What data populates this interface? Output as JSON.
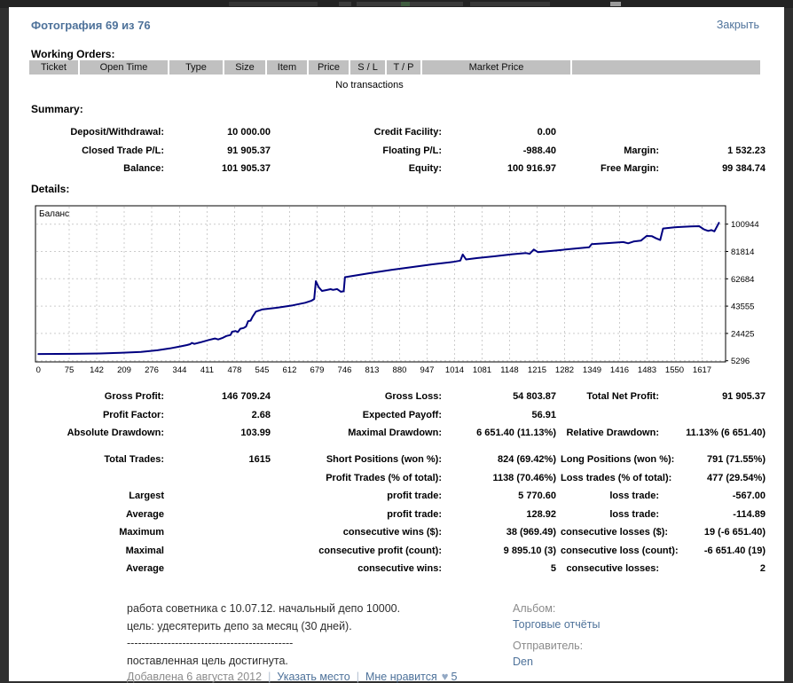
{
  "overlay": {
    "title": "Фотография 69 из 76",
    "close_label": "Закрыть"
  },
  "report": {
    "working_orders": {
      "heading": "Working Orders:",
      "columns": [
        "Ticket",
        "Open Time",
        "Type",
        "Size",
        "Item",
        "Price",
        "S / L",
        "T / P",
        "Market Price",
        ""
      ],
      "empty_message": "No transactions"
    },
    "summary": {
      "heading": "Summary:",
      "rows": [
        [
          "Deposit/Withdrawal:",
          "10 000.00",
          "Credit Facility:",
          "0.00",
          "",
          ""
        ],
        [
          "Closed Trade P/L:",
          "91 905.37",
          "Floating P/L:",
          "-988.40",
          "Margin:",
          "1 532.23"
        ],
        [
          "Balance:",
          "101 905.37",
          "Equity:",
          "100 916.97",
          "Free Margin:",
          "99 384.74"
        ]
      ]
    },
    "details_heading": "Details:",
    "stats_top": {
      "rows": [
        [
          "Gross Profit:",
          "146 709.24",
          "Gross Loss:",
          "54 803.87",
          "Total Net Profit:",
          "91 905.37"
        ],
        [
          "Profit Factor:",
          "2.68",
          "Expected Payoff:",
          "56.91",
          "",
          ""
        ],
        [
          "Absolute Drawdown:",
          "103.99",
          "Maximal Drawdown:",
          "6 651.40 (11.13%)",
          "Relative Drawdown:",
          "11.13% (6 651.40)"
        ]
      ]
    },
    "stats_main": {
      "rows": [
        [
          "Total Trades:",
          "1615",
          "Short Positions (won %):",
          "824 (69.42%)",
          "Long Positions (won %):",
          "791 (71.55%)"
        ],
        [
          "",
          "",
          "Profit Trades (% of total):",
          "1138 (70.46%)",
          "Loss trades (% of total):",
          "477 (29.54%)"
        ],
        [
          "Largest",
          "",
          "profit trade:",
          "5 770.60",
          "loss trade:",
          "-567.00"
        ],
        [
          "Average",
          "",
          "profit trade:",
          "128.92",
          "loss trade:",
          "-114.89"
        ],
        [
          "Maximum",
          "",
          "consecutive wins ($):",
          "38 (969.49)",
          "consecutive losses ($):",
          "19 (-6 651.40)"
        ],
        [
          "Maximal",
          "",
          "consecutive profit (count):",
          "9 895.10 (3)",
          "consecutive loss (count):",
          "-6 651.40 (19)"
        ],
        [
          "Average",
          "",
          "consecutive wins:",
          "5",
          "consecutive losses:",
          "2"
        ]
      ]
    }
  },
  "chart_data": {
    "type": "line",
    "title": "Баланс",
    "xlabel": "",
    "ylabel": "",
    "grid": "dashed",
    "line_color": "#000080",
    "x_ticks": [
      0,
      75,
      142,
      209,
      276,
      344,
      411,
      478,
      545,
      612,
      679,
      746,
      813,
      880,
      947,
      1014,
      1081,
      1148,
      1215,
      1282,
      1349,
      1416,
      1483,
      1550,
      1617
    ],
    "y_ticks": [
      5296,
      24425,
      43555,
      62684,
      81814,
      100944
    ],
    "x_range": [
      0,
      1674
    ],
    "y_range": [
      5296,
      113800
    ],
    "series": [
      {
        "name": "Баланс",
        "points": [
          [
            0,
            10000
          ],
          [
            90,
            10150
          ],
          [
            150,
            10400
          ],
          [
            200,
            10900
          ],
          [
            250,
            11500
          ],
          [
            290,
            12600
          ],
          [
            320,
            13900
          ],
          [
            345,
            15300
          ],
          [
            362,
            16300
          ],
          [
            370,
            16900
          ],
          [
            374,
            17800
          ],
          [
            380,
            17100
          ],
          [
            395,
            18200
          ],
          [
            415,
            19800
          ],
          [
            430,
            20900
          ],
          [
            438,
            20200
          ],
          [
            448,
            21200
          ],
          [
            458,
            22600
          ],
          [
            468,
            23300
          ],
          [
            472,
            25600
          ],
          [
            480,
            26100
          ],
          [
            486,
            25400
          ],
          [
            492,
            27700
          ],
          [
            500,
            28200
          ],
          [
            506,
            29300
          ],
          [
            511,
            33000
          ],
          [
            517,
            33400
          ],
          [
            522,
            36200
          ],
          [
            530,
            39700
          ],
          [
            545,
            41200
          ],
          [
            580,
            42400
          ],
          [
            620,
            44100
          ],
          [
            650,
            45900
          ],
          [
            665,
            47300
          ],
          [
            672,
            48500
          ],
          [
            676,
            61000
          ],
          [
            683,
            56800
          ],
          [
            691,
            54200
          ],
          [
            702,
            54800
          ],
          [
            712,
            55400
          ],
          [
            718,
            54900
          ],
          [
            728,
            55500
          ],
          [
            737,
            53600
          ],
          [
            744,
            53900
          ],
          [
            747,
            63800
          ],
          [
            765,
            64700
          ],
          [
            810,
            66700
          ],
          [
            860,
            68900
          ],
          [
            910,
            70900
          ],
          [
            960,
            72800
          ],
          [
            1010,
            74500
          ],
          [
            1028,
            75400
          ],
          [
            1034,
            79700
          ],
          [
            1042,
            76200
          ],
          [
            1070,
            77200
          ],
          [
            1110,
            78400
          ],
          [
            1155,
            79900
          ],
          [
            1188,
            80700
          ],
          [
            1197,
            80200
          ],
          [
            1207,
            83200
          ],
          [
            1217,
            81400
          ],
          [
            1265,
            82600
          ],
          [
            1310,
            83900
          ],
          [
            1342,
            84800
          ],
          [
            1348,
            86900
          ],
          [
            1390,
            87700
          ],
          [
            1425,
            88400
          ],
          [
            1437,
            87500
          ],
          [
            1450,
            88800
          ],
          [
            1468,
            89400
          ],
          [
            1482,
            92700
          ],
          [
            1495,
            92500
          ],
          [
            1505,
            91000
          ],
          [
            1515,
            89800
          ],
          [
            1522,
            97900
          ],
          [
            1550,
            98800
          ],
          [
            1590,
            99300
          ],
          [
            1610,
            99500
          ],
          [
            1622,
            97200
          ],
          [
            1632,
            96200
          ],
          [
            1640,
            96800
          ],
          [
            1647,
            95900
          ],
          [
            1658,
            101905
          ]
        ]
      }
    ]
  },
  "comment": {
    "lines": [
      "работа советника с 10.07.12. начальный депо 10000.",
      "цель: удесятерить депо за месяц (30 дней).",
      "---------------------------------------------",
      "поставленная цель достигнута."
    ],
    "added": "Добавлена 6 августа 2012",
    "separator": "|",
    "place_link": "Указать место",
    "like_link": "Мне нравится",
    "heart_icon": "♥",
    "like_count": "5"
  },
  "sidebar": {
    "album_label": "Альбом:",
    "album_link": "Торговые отчёты",
    "sender_label": "Отправитель:",
    "sender_link": "Den"
  }
}
